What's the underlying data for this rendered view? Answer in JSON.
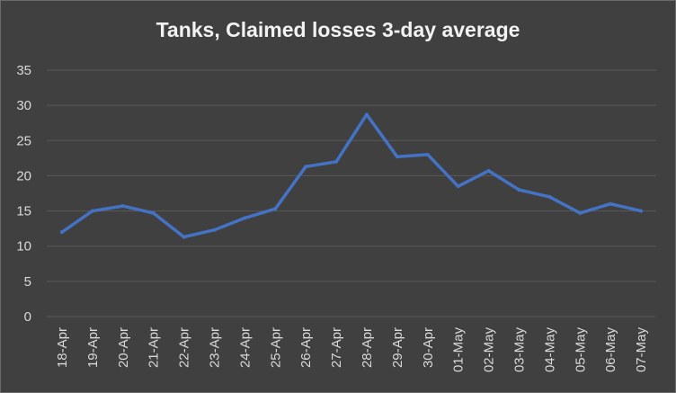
{
  "chart_data": {
    "type": "line",
    "title": "Tanks, Claimed losses 3-day average",
    "categories": [
      "18-Apr",
      "19-Apr",
      "20-Apr",
      "21-Apr",
      "22-Apr",
      "23-Apr",
      "24-Apr",
      "25-Apr",
      "26-Apr",
      "27-Apr",
      "28-Apr",
      "29-Apr",
      "30-Apr",
      "01-May",
      "02-May",
      "03-May",
      "04-May",
      "05-May",
      "06-May",
      "07-May"
    ],
    "series": [
      {
        "values": [
          12.0,
          15.0,
          15.7,
          14.7,
          11.3,
          12.3,
          14.0,
          15.3,
          21.3,
          22.0,
          28.7,
          22.7,
          23.0,
          18.5,
          20.7,
          18.0,
          17.0,
          14.7,
          16.0,
          15.0
        ]
      }
    ],
    "yticks": [
      0,
      5,
      10,
      15,
      20,
      25,
      30,
      35
    ],
    "ylim": [
      0,
      35
    ],
    "grid": true,
    "colors": {
      "background": "#404040",
      "line": "#4472c4",
      "grid": "#595959",
      "text": "#d9d9d9"
    }
  }
}
